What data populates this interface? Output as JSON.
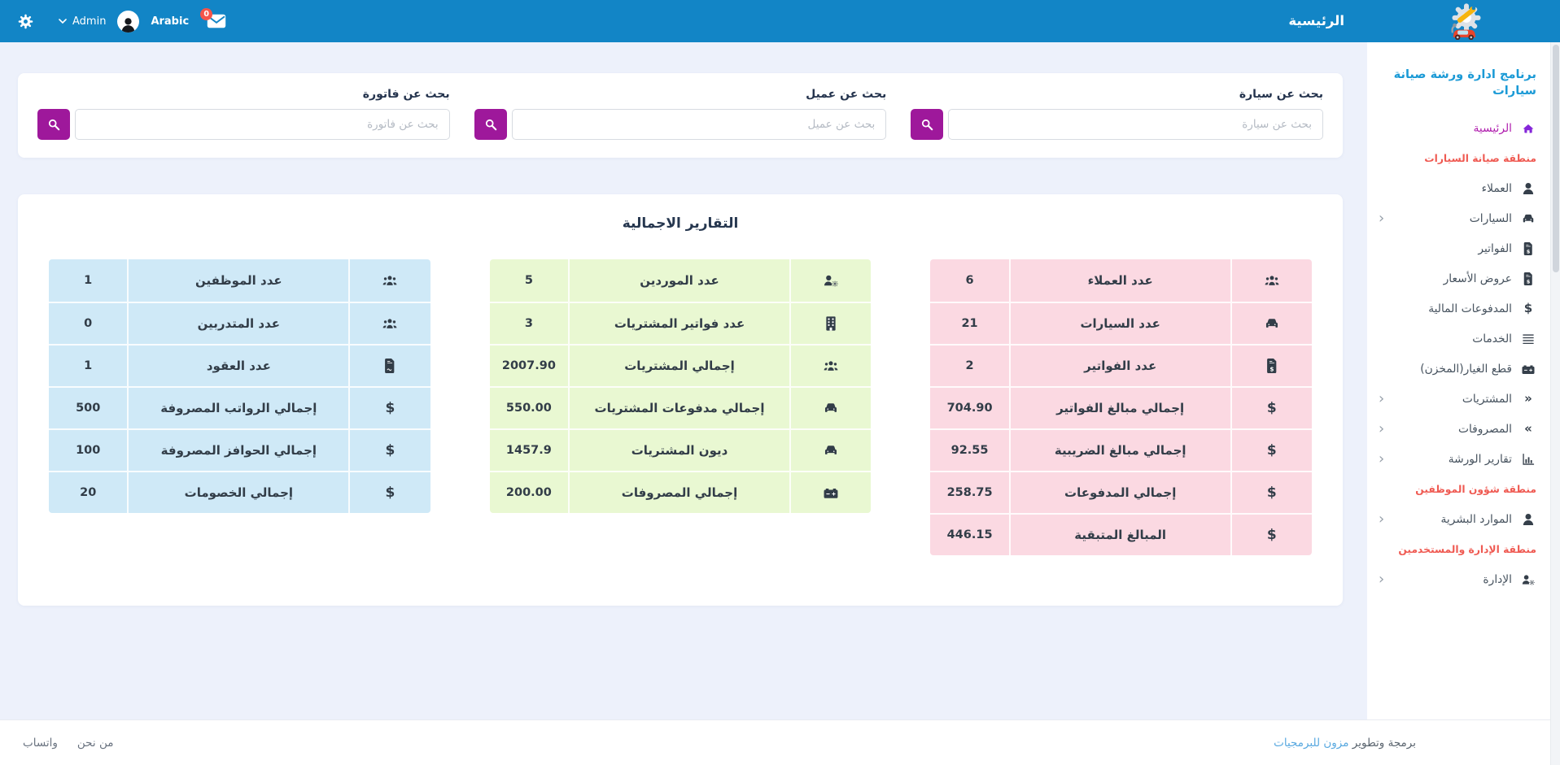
{
  "navbar": {
    "title": "الرئيسية",
    "admin_label": "Admin",
    "language_label": "Arabic",
    "messages_badge": "0"
  },
  "sidebar": {
    "app_title": "برنامج ادارة ورشة صيانة سيارات",
    "items": [
      {
        "type": "link",
        "label": "الرئيسية",
        "icon": "home",
        "active": true,
        "chevron": false
      },
      {
        "type": "section",
        "label": "منطقة صيانة السيارات"
      },
      {
        "type": "link",
        "label": "العملاء",
        "icon": "user",
        "chevron": false
      },
      {
        "type": "link",
        "label": "السيارات",
        "icon": "car",
        "chevron": true
      },
      {
        "type": "link",
        "label": "الفواتير",
        "icon": "file-invoice-dollar",
        "chevron": false
      },
      {
        "type": "link",
        "label": "عروض الأسعار",
        "icon": "file-invoice-dollar",
        "chevron": false
      },
      {
        "type": "link",
        "label": "المدفوعات المالية",
        "icon": "dollar",
        "chevron": false
      },
      {
        "type": "link",
        "label": "الخدمات",
        "icon": "list",
        "chevron": false
      },
      {
        "type": "link",
        "label": "قطع الغيار(المخزن)",
        "icon": "car-battery",
        "chevron": false
      },
      {
        "type": "link",
        "label": "المشتريات",
        "icon": "angles-left",
        "chevron": true
      },
      {
        "type": "link",
        "label": "المصروفات",
        "icon": "angles-right",
        "chevron": true
      },
      {
        "type": "link",
        "label": "تقارير الورشة",
        "icon": "chart",
        "chevron": true
      },
      {
        "type": "section",
        "label": "منطقة شؤون الموظفين"
      },
      {
        "type": "link",
        "label": "الموارد البشرية",
        "icon": "user",
        "chevron": true
      },
      {
        "type": "section",
        "label": "منطقة الإدارة والمستخدمين"
      },
      {
        "type": "link",
        "label": "الإدارة",
        "icon": "users-gear",
        "chevron": true
      }
    ]
  },
  "search": {
    "groups": [
      {
        "label": "بحث عن سيارة",
        "placeholder": "بحث عن سيارة"
      },
      {
        "label": "بحث عن عميل",
        "placeholder": "بحث عن عميل"
      },
      {
        "label": "بحث عن فاتورة",
        "placeholder": "بحث عن فاتورة"
      }
    ]
  },
  "reports": {
    "title": "التقارير الاجمالية",
    "tables": [
      {
        "name": "invoices-summary",
        "theme": "pink",
        "rows": [
          {
            "icon": "users",
            "label": "عدد العملاء",
            "value": "6"
          },
          {
            "icon": "car",
            "label": "عدد السيارات",
            "value": "21"
          },
          {
            "icon": "file-invoice-dollar",
            "label": "عدد الفواتير",
            "value": "2"
          },
          {
            "icon": "dollar",
            "label": "إجمالي مبالغ الفواتير",
            "value": "704.90"
          },
          {
            "icon": "dollar",
            "label": "إجمالي مبالغ الضريبية",
            "value": "92.55"
          },
          {
            "icon": "dollar",
            "label": "إجمالي المدفوعات",
            "value": "258.75"
          },
          {
            "icon": "dollar",
            "label": "المبالغ المتبقية",
            "value": "446.15"
          }
        ]
      },
      {
        "name": "purchases-summary",
        "theme": "green",
        "rows": [
          {
            "icon": "user-gear",
            "label": "عدد الموردين",
            "value": "5"
          },
          {
            "icon": "building",
            "label": "عدد فواتير المشتريات",
            "value": "3"
          },
          {
            "icon": "users",
            "label": "إجمالي المشتريات",
            "value": "2007.90"
          },
          {
            "icon": "car",
            "label": "إجمالي مدفوعات المشتريات",
            "value": "550.00"
          },
          {
            "icon": "car",
            "label": "ديون المشتريات",
            "value": "1457.9"
          },
          {
            "icon": "car-battery",
            "label": "إجمالي المصروفات",
            "value": "200.00"
          }
        ]
      },
      {
        "name": "hr-summary",
        "theme": "blue",
        "rows": [
          {
            "icon": "users",
            "label": "عدد الموظفين",
            "value": "1"
          },
          {
            "icon": "users",
            "label": "عدد المتدربين",
            "value": "0"
          },
          {
            "icon": "file-contract",
            "label": "عدد العقود",
            "value": "1"
          },
          {
            "icon": "dollar",
            "label": "إجمالي الرواتب المصروفة",
            "value": "500"
          },
          {
            "icon": "dollar",
            "label": "إجمالي الحوافز المصروفة",
            "value": "100"
          },
          {
            "icon": "dollar",
            "label": "إجمالي الخصومات",
            "value": "20"
          }
        ]
      }
    ]
  },
  "footer": {
    "dev_prefix": "برمجة وتطوير",
    "dev_link": "مزون للبرمجيات",
    "links": [
      {
        "label": "من نحن"
      },
      {
        "label": "واتساب"
      }
    ]
  },
  "colors": {
    "navbar": "#1285c6",
    "accent_button": "#9e189b",
    "active_link_text": "#b01fae",
    "active_link_icon": "#8526d9",
    "section_header": "#ef5a52",
    "app_title": "#1b9ad6",
    "table_pink": "#fbd9e2",
    "table_green": "#e9f8d2",
    "table_blue": "#cfe9f7",
    "footer_link": "#59a9e0",
    "badge": "#f4544a"
  }
}
